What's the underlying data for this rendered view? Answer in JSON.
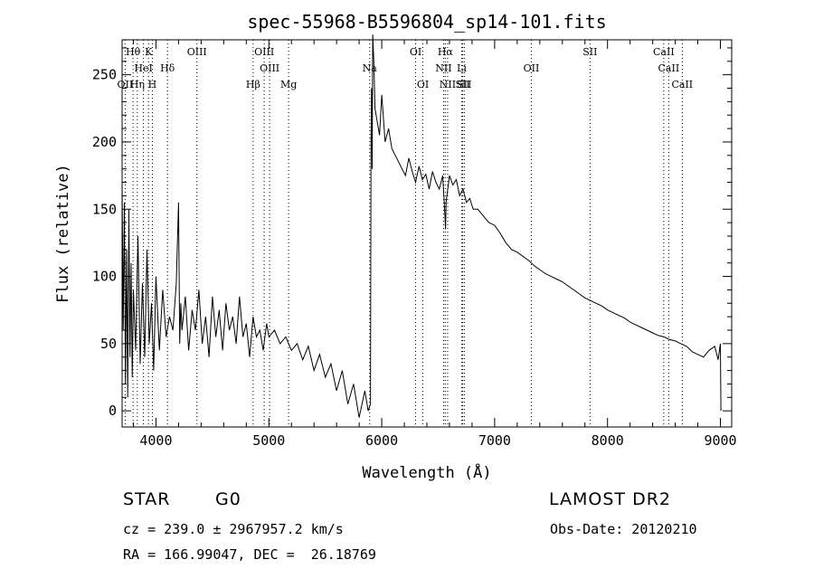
{
  "chart_data": {
    "type": "line",
    "title": "spec-55968-B5596804_sp14-101.fits",
    "xlabel": "Wavelength (Å)",
    "ylabel": "Flux (relative)",
    "xlim": [
      3700,
      9100
    ],
    "ylim": [
      -12,
      276
    ],
    "xticks": [
      4000,
      5000,
      6000,
      7000,
      8000,
      9000
    ],
    "yticks": [
      0,
      50,
      100,
      150,
      200,
      250
    ],
    "grid": false,
    "series": [
      {
        "x": [
          3700,
          3710,
          3720,
          3730,
          3740,
          3750,
          3760,
          3770,
          3780,
          3790,
          3800,
          3820,
          3840,
          3860,
          3880,
          3900,
          3920,
          3940,
          3960,
          3980,
          4000,
          4030,
          4060,
          4090,
          4120,
          4150,
          4180,
          4200,
          4210,
          4220,
          4230,
          4260,
          4290,
          4320,
          4350,
          4380,
          4410,
          4440,
          4470,
          4500,
          4530,
          4560,
          4590,
          4620,
          4650,
          4680,
          4710,
          4740,
          4770,
          4800,
          4830,
          4860,
          4890,
          4920,
          4950,
          4980,
          5000,
          5050,
          5100,
          5150,
          5200,
          5250,
          5300,
          5350,
          5400,
          5450,
          5500,
          5550,
          5600,
          5650,
          5700,
          5750,
          5800,
          5850,
          5880,
          5900,
          5905,
          5910,
          5915,
          5920,
          5930,
          5940,
          5960,
          5980,
          6000,
          6030,
          6060,
          6090,
          6120,
          6150,
          6180,
          6210,
          6240,
          6270,
          6300,
          6330,
          6360,
          6390,
          6420,
          6450,
          6480,
          6510,
          6540,
          6560,
          6565,
          6570,
          6600,
          6630,
          6660,
          6690,
          6720,
          6750,
          6780,
          6810,
          6850,
          6900,
          6950,
          7000,
          7050,
          7100,
          7150,
          7200,
          7250,
          7300,
          7350,
          7400,
          7450,
          7500,
          7550,
          7600,
          7650,
          7700,
          7750,
          7800,
          7850,
          7900,
          7950,
          8000,
          8050,
          8100,
          8150,
          8200,
          8250,
          8300,
          8350,
          8400,
          8450,
          8500,
          8550,
          8600,
          8650,
          8700,
          8750,
          8800,
          8850,
          8900,
          8950,
          8980,
          9000,
          9005
        ],
        "values": [
          170,
          60,
          155,
          20,
          120,
          10,
          150,
          40,
          110,
          25,
          90,
          45,
          130,
          35,
          95,
          40,
          120,
          50,
          80,
          30,
          100,
          45,
          90,
          55,
          70,
          60,
          95,
          155,
          50,
          80,
          60,
          85,
          45,
          75,
          60,
          90,
          50,
          70,
          40,
          85,
          55,
          75,
          45,
          80,
          60,
          70,
          50,
          85,
          55,
          65,
          40,
          70,
          55,
          60,
          45,
          65,
          55,
          60,
          50,
          55,
          45,
          50,
          38,
          48,
          30,
          42,
          25,
          35,
          15,
          30,
          5,
          20,
          -5,
          15,
          0,
          5,
          200,
          240,
          180,
          280,
          260,
          225,
          215,
          205,
          235,
          200,
          210,
          195,
          190,
          185,
          180,
          175,
          188,
          178,
          170,
          182,
          172,
          176,
          165,
          178,
          170,
          165,
          175,
          145,
          135,
          155,
          175,
          168,
          172,
          160,
          165,
          155,
          158,
          150,
          150,
          145,
          140,
          138,
          132,
          125,
          120,
          118,
          115,
          112,
          108,
          105,
          102,
          100,
          98,
          96,
          93,
          90,
          87,
          84,
          82,
          80,
          78,
          75,
          73,
          71,
          69,
          66,
          64,
          62,
          60,
          58,
          56,
          55,
          53,
          52,
          50,
          48,
          44,
          42,
          40,
          45,
          48,
          38,
          50,
          0
        ]
      }
    ],
    "lines": [
      {
        "label": "Hθ",
        "x": 3797,
        "row": 1
      },
      {
        "label": "K",
        "x": 3934,
        "row": 1
      },
      {
        "label": "HeI",
        "x": 3889,
        "row": 2
      },
      {
        "label": "Hδ",
        "x": 4102,
        "row": 2
      },
      {
        "label": "OII",
        "x": 3727,
        "row": 3
      },
      {
        "label": "Hη",
        "x": 3835,
        "row": 3
      },
      {
        "label": "H",
        "x": 3968,
        "row": 3
      },
      {
        "label": "OIII",
        "x": 4363,
        "row": 1
      },
      {
        "label": "OIII",
        "x": 4959,
        "row": 1
      },
      {
        "label": "OIII",
        "x": 5007,
        "row": 2
      },
      {
        "label": "Hβ",
        "x": 4861,
        "row": 3
      },
      {
        "label": "Mg",
        "x": 5175,
        "row": 3
      },
      {
        "label": "Na",
        "x": 5893,
        "row": 2
      },
      {
        "label": "OI",
        "x": 6300,
        "row": 1
      },
      {
        "label": "OI",
        "x": 6364,
        "row": 3
      },
      {
        "label": "Hα",
        "x": 6563,
        "row": 1
      },
      {
        "label": "NII",
        "x": 6548,
        "row": 2
      },
      {
        "label": "Li",
        "x": 6708,
        "row": 2
      },
      {
        "label": "NII",
        "x": 6584,
        "row": 3
      },
      {
        "label": "SII",
        "x": 6717,
        "row": 3
      },
      {
        "label": "SII",
        "x": 6731,
        "row": 3
      },
      {
        "label": "OII",
        "x": 7325,
        "row": 2
      },
      {
        "label": "SII",
        "x": 7845,
        "row": 1
      },
      {
        "label": "CaII",
        "x": 8498,
        "row": 1
      },
      {
        "label": "CaII",
        "x": 8542,
        "row": 2
      },
      {
        "label": "CaII",
        "x": 8662,
        "row": 3
      }
    ]
  },
  "info": {
    "class": "STAR",
    "subclass": "G0",
    "survey": "LAMOST DR2",
    "cz": "cz = 239.0 ± 2967957.2 km/s",
    "obs_date": "Obs-Date: 20120210",
    "coords": "RA = 166.99047, DEC =  26.18769"
  }
}
